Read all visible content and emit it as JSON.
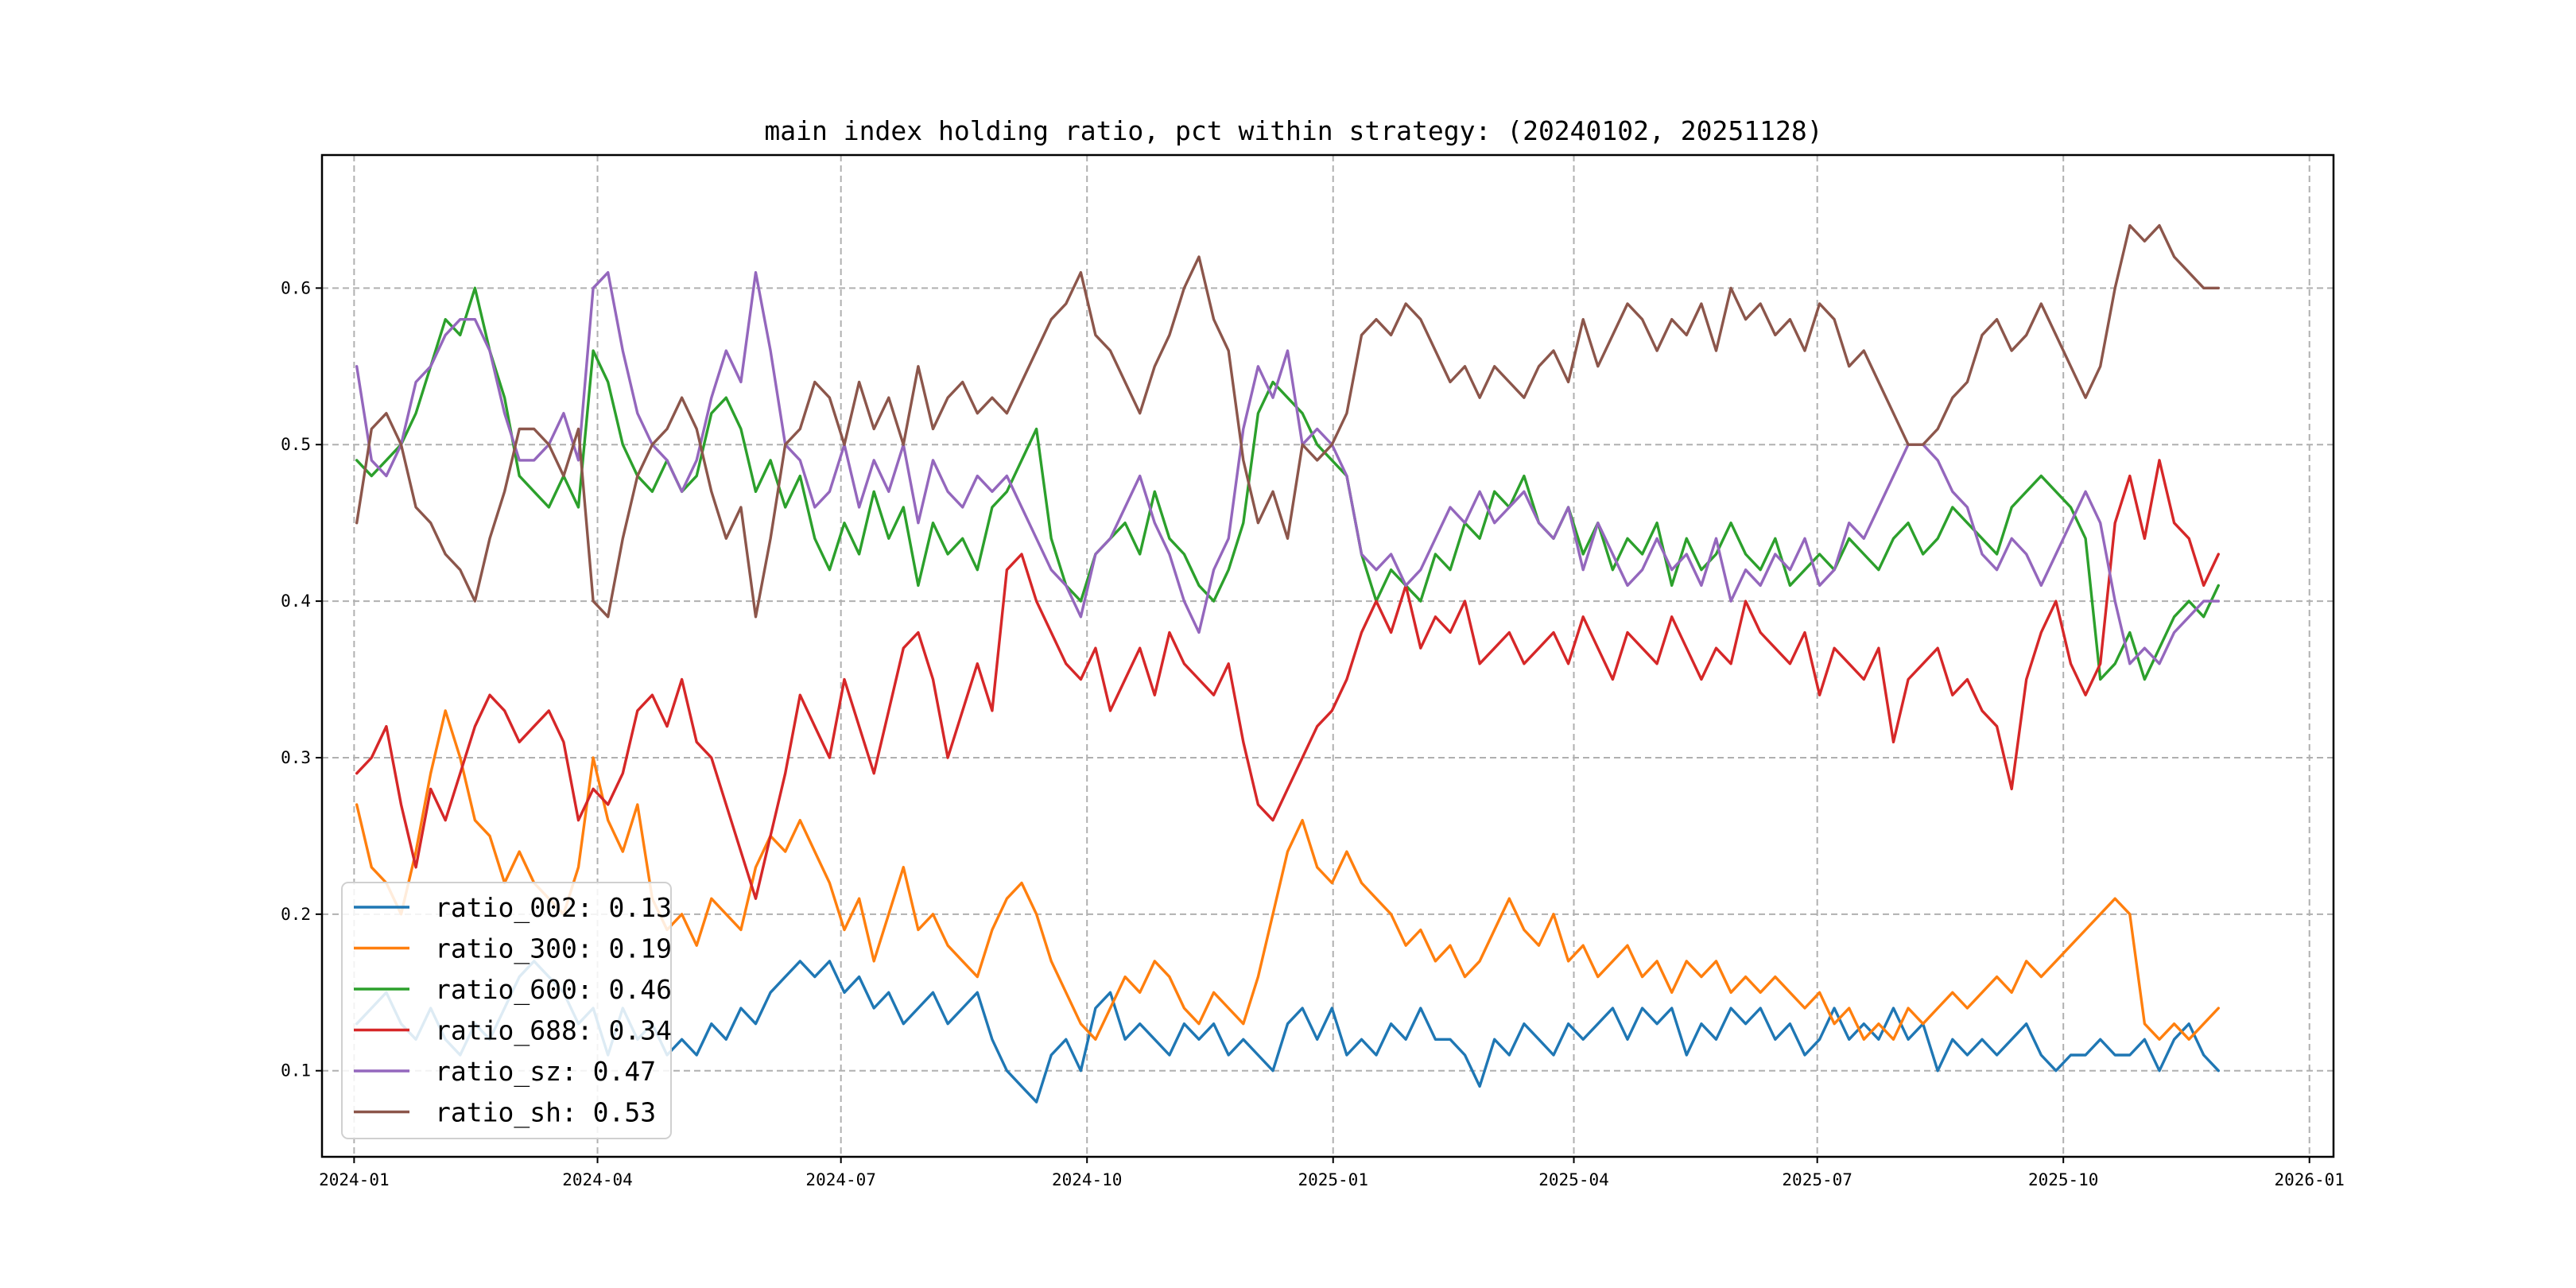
{
  "chart_data": {
    "type": "line",
    "title": "main index holding ratio, pct within strategy: (20240102, 20251128)",
    "xlabel": "",
    "ylabel": "",
    "x_range": [
      "2023-12-20",
      "2026-01-10"
    ],
    "x_start": "2024-01-02",
    "x_end": "2025-11-28",
    "ylim": [
      0.045,
      0.685
    ],
    "grid": true,
    "legend_position": "lower-left",
    "x_ticks": [
      "2024-01",
      "2024-04",
      "2024-07",
      "2024-10",
      "2025-01",
      "2025-04",
      "2025-07",
      "2025-10",
      "2026-01"
    ],
    "x_tick_dates": [
      "2024-01-01",
      "2024-04-01",
      "2024-07-01",
      "2024-10-01",
      "2025-01-01",
      "2025-04-01",
      "2025-07-01",
      "2025-10-01",
      "2026-01-01"
    ],
    "y_ticks": [
      "0.1",
      "0.2",
      "0.3",
      "0.4",
      "0.5",
      "0.6"
    ],
    "y_tick_values": [
      0.1,
      0.2,
      0.3,
      0.4,
      0.5,
      0.6
    ],
    "series": [
      {
        "name": "ratio_002",
        "legend": "ratio_002: 0.13",
        "color": "#1f77b4",
        "values": [
          0.13,
          0.14,
          0.15,
          0.13,
          0.12,
          0.14,
          0.12,
          0.11,
          0.13,
          0.12,
          0.14,
          0.16,
          0.17,
          0.16,
          0.15,
          0.13,
          0.14,
          0.11,
          0.14,
          0.12,
          0.13,
          0.11,
          0.12,
          0.11,
          0.13,
          0.12,
          0.14,
          0.13,
          0.15,
          0.16,
          0.17,
          0.16,
          0.17,
          0.15,
          0.16,
          0.14,
          0.15,
          0.13,
          0.14,
          0.15,
          0.13,
          0.14,
          0.15,
          0.12,
          0.1,
          0.09,
          0.08,
          0.11,
          0.12,
          0.1,
          0.14,
          0.15,
          0.12,
          0.13,
          0.12,
          0.11,
          0.13,
          0.12,
          0.13,
          0.11,
          0.12,
          0.11,
          0.1,
          0.13,
          0.14,
          0.12,
          0.14,
          0.11,
          0.12,
          0.11,
          0.13,
          0.12,
          0.14,
          0.12,
          0.12,
          0.11,
          0.09,
          0.12,
          0.11,
          0.13,
          0.12,
          0.11,
          0.13,
          0.12,
          0.13,
          0.14,
          0.12,
          0.14,
          0.13,
          0.14,
          0.11,
          0.13,
          0.12,
          0.14,
          0.13,
          0.14,
          0.12,
          0.13,
          0.11,
          0.12,
          0.14,
          0.12,
          0.13,
          0.12,
          0.14,
          0.12,
          0.13,
          0.1,
          0.12,
          0.11,
          0.12,
          0.11,
          0.12,
          0.13,
          0.11,
          0.1,
          0.11,
          0.11,
          0.12,
          0.11,
          0.11,
          0.12,
          0.1,
          0.12,
          0.13,
          0.11,
          0.1
        ]
      },
      {
        "name": "ratio_300",
        "legend": "ratio_300: 0.19",
        "color": "#ff7f0e",
        "values": [
          0.27,
          0.23,
          0.22,
          0.2,
          0.24,
          0.29,
          0.33,
          0.3,
          0.26,
          0.25,
          0.22,
          0.24,
          0.22,
          0.21,
          0.2,
          0.23,
          0.3,
          0.26,
          0.24,
          0.27,
          0.21,
          0.19,
          0.2,
          0.18,
          0.21,
          0.2,
          0.19,
          0.23,
          0.25,
          0.24,
          0.26,
          0.24,
          0.22,
          0.19,
          0.21,
          0.17,
          0.2,
          0.23,
          0.19,
          0.2,
          0.18,
          0.17,
          0.16,
          0.19,
          0.21,
          0.22,
          0.2,
          0.17,
          0.15,
          0.13,
          0.12,
          0.14,
          0.16,
          0.15,
          0.17,
          0.16,
          0.14,
          0.13,
          0.15,
          0.14,
          0.13,
          0.16,
          0.2,
          0.24,
          0.26,
          0.23,
          0.22,
          0.24,
          0.22,
          0.21,
          0.2,
          0.18,
          0.19,
          0.17,
          0.18,
          0.16,
          0.17,
          0.19,
          0.21,
          0.19,
          0.18,
          0.2,
          0.17,
          0.18,
          0.16,
          0.17,
          0.18,
          0.16,
          0.17,
          0.15,
          0.17,
          0.16,
          0.17,
          0.15,
          0.16,
          0.15,
          0.16,
          0.15,
          0.14,
          0.15,
          0.13,
          0.14,
          0.12,
          0.13,
          0.12,
          0.14,
          0.13,
          0.14,
          0.15,
          0.14,
          0.15,
          0.16,
          0.15,
          0.17,
          0.16,
          0.17,
          0.18,
          0.19,
          0.2,
          0.21,
          0.2,
          0.13,
          0.12,
          0.13,
          0.12,
          0.13,
          0.14
        ]
      },
      {
        "name": "ratio_600",
        "legend": "ratio_600: 0.46",
        "color": "#2ca02c",
        "values": [
          0.49,
          0.48,
          0.49,
          0.5,
          0.52,
          0.55,
          0.58,
          0.57,
          0.6,
          0.56,
          0.53,
          0.48,
          0.47,
          0.46,
          0.48,
          0.46,
          0.56,
          0.54,
          0.5,
          0.48,
          0.47,
          0.49,
          0.47,
          0.48,
          0.52,
          0.53,
          0.51,
          0.47,
          0.49,
          0.46,
          0.48,
          0.44,
          0.42,
          0.45,
          0.43,
          0.47,
          0.44,
          0.46,
          0.41,
          0.45,
          0.43,
          0.44,
          0.42,
          0.46,
          0.47,
          0.49,
          0.51,
          0.44,
          0.41,
          0.4,
          0.43,
          0.44,
          0.45,
          0.43,
          0.47,
          0.44,
          0.43,
          0.41,
          0.4,
          0.42,
          0.45,
          0.52,
          0.54,
          0.53,
          0.52,
          0.5,
          0.49,
          0.48,
          0.43,
          0.4,
          0.42,
          0.41,
          0.4,
          0.43,
          0.42,
          0.45,
          0.44,
          0.47,
          0.46,
          0.48,
          0.45,
          0.44,
          0.46,
          0.43,
          0.45,
          0.42,
          0.44,
          0.43,
          0.45,
          0.41,
          0.44,
          0.42,
          0.43,
          0.45,
          0.43,
          0.42,
          0.44,
          0.41,
          0.42,
          0.43,
          0.42,
          0.44,
          0.43,
          0.42,
          0.44,
          0.45,
          0.43,
          0.44,
          0.46,
          0.45,
          0.44,
          0.43,
          0.46,
          0.47,
          0.48,
          0.47,
          0.46,
          0.44,
          0.35,
          0.36,
          0.38,
          0.35,
          0.37,
          0.39,
          0.4,
          0.39,
          0.41
        ]
      },
      {
        "name": "ratio_688",
        "legend": "ratio_688: 0.34",
        "color": "#d62728",
        "values": [
          0.29,
          0.3,
          0.32,
          0.27,
          0.23,
          0.28,
          0.26,
          0.29,
          0.32,
          0.34,
          0.33,
          0.31,
          0.32,
          0.33,
          0.31,
          0.26,
          0.28,
          0.27,
          0.29,
          0.33,
          0.34,
          0.32,
          0.35,
          0.31,
          0.3,
          0.27,
          0.24,
          0.21,
          0.25,
          0.29,
          0.34,
          0.32,
          0.3,
          0.35,
          0.32,
          0.29,
          0.33,
          0.37,
          0.38,
          0.35,
          0.3,
          0.33,
          0.36,
          0.33,
          0.42,
          0.43,
          0.4,
          0.38,
          0.36,
          0.35,
          0.37,
          0.33,
          0.35,
          0.37,
          0.34,
          0.38,
          0.36,
          0.35,
          0.34,
          0.36,
          0.31,
          0.27,
          0.26,
          0.28,
          0.3,
          0.32,
          0.33,
          0.35,
          0.38,
          0.4,
          0.38,
          0.41,
          0.37,
          0.39,
          0.38,
          0.4,
          0.36,
          0.37,
          0.38,
          0.36,
          0.37,
          0.38,
          0.36,
          0.39,
          0.37,
          0.35,
          0.38,
          0.37,
          0.36,
          0.39,
          0.37,
          0.35,
          0.37,
          0.36,
          0.4,
          0.38,
          0.37,
          0.36,
          0.38,
          0.34,
          0.37,
          0.36,
          0.35,
          0.37,
          0.31,
          0.35,
          0.36,
          0.37,
          0.34,
          0.35,
          0.33,
          0.32,
          0.28,
          0.35,
          0.38,
          0.4,
          0.36,
          0.34,
          0.36,
          0.45,
          0.48,
          0.44,
          0.49,
          0.45,
          0.44,
          0.41,
          0.43
        ]
      },
      {
        "name": "ratio_sz",
        "legend": "ratio_sz: 0.47",
        "color": "#9467bd",
        "values": [
          0.55,
          0.49,
          0.48,
          0.5,
          0.54,
          0.55,
          0.57,
          0.58,
          0.58,
          0.56,
          0.52,
          0.49,
          0.49,
          0.5,
          0.52,
          0.49,
          0.6,
          0.61,
          0.56,
          0.52,
          0.5,
          0.49,
          0.47,
          0.49,
          0.53,
          0.56,
          0.54,
          0.61,
          0.56,
          0.5,
          0.49,
          0.46,
          0.47,
          0.5,
          0.46,
          0.49,
          0.47,
          0.5,
          0.45,
          0.49,
          0.47,
          0.46,
          0.48,
          0.47,
          0.48,
          0.46,
          0.44,
          0.42,
          0.41,
          0.39,
          0.43,
          0.44,
          0.46,
          0.48,
          0.45,
          0.43,
          0.4,
          0.38,
          0.42,
          0.44,
          0.51,
          0.55,
          0.53,
          0.56,
          0.5,
          0.51,
          0.5,
          0.48,
          0.43,
          0.42,
          0.43,
          0.41,
          0.42,
          0.44,
          0.46,
          0.45,
          0.47,
          0.45,
          0.46,
          0.47,
          0.45,
          0.44,
          0.46,
          0.42,
          0.45,
          0.43,
          0.41,
          0.42,
          0.44,
          0.42,
          0.43,
          0.41,
          0.44,
          0.4,
          0.42,
          0.41,
          0.43,
          0.42,
          0.44,
          0.41,
          0.42,
          0.45,
          0.44,
          0.46,
          0.48,
          0.5,
          0.5,
          0.49,
          0.47,
          0.46,
          0.43,
          0.42,
          0.44,
          0.43,
          0.41,
          0.43,
          0.45,
          0.47,
          0.45,
          0.4,
          0.36,
          0.37,
          0.36,
          0.38,
          0.39,
          0.4,
          0.4
        ]
      },
      {
        "name": "ratio_sh",
        "legend": "ratio_sh: 0.53",
        "color": "#8c564b",
        "values": [
          0.45,
          0.51,
          0.52,
          0.5,
          0.46,
          0.45,
          0.43,
          0.42,
          0.4,
          0.44,
          0.47,
          0.51,
          0.51,
          0.5,
          0.48,
          0.51,
          0.4,
          0.39,
          0.44,
          0.48,
          0.5,
          0.51,
          0.53,
          0.51,
          0.47,
          0.44,
          0.46,
          0.39,
          0.44,
          0.5,
          0.51,
          0.54,
          0.53,
          0.5,
          0.54,
          0.51,
          0.53,
          0.5,
          0.55,
          0.51,
          0.53,
          0.54,
          0.52,
          0.53,
          0.52,
          0.54,
          0.56,
          0.58,
          0.59,
          0.61,
          0.57,
          0.56,
          0.54,
          0.52,
          0.55,
          0.57,
          0.6,
          0.62,
          0.58,
          0.56,
          0.49,
          0.45,
          0.47,
          0.44,
          0.5,
          0.49,
          0.5,
          0.52,
          0.57,
          0.58,
          0.57,
          0.59,
          0.58,
          0.56,
          0.54,
          0.55,
          0.53,
          0.55,
          0.54,
          0.53,
          0.55,
          0.56,
          0.54,
          0.58,
          0.55,
          0.57,
          0.59,
          0.58,
          0.56,
          0.58,
          0.57,
          0.59,
          0.56,
          0.6,
          0.58,
          0.59,
          0.57,
          0.58,
          0.56,
          0.59,
          0.58,
          0.55,
          0.56,
          0.54,
          0.52,
          0.5,
          0.5,
          0.51,
          0.53,
          0.54,
          0.57,
          0.58,
          0.56,
          0.57,
          0.59,
          0.57,
          0.55,
          0.53,
          0.55,
          0.6,
          0.64,
          0.63,
          0.64,
          0.62,
          0.61,
          0.6,
          0.6
        ]
      }
    ]
  }
}
